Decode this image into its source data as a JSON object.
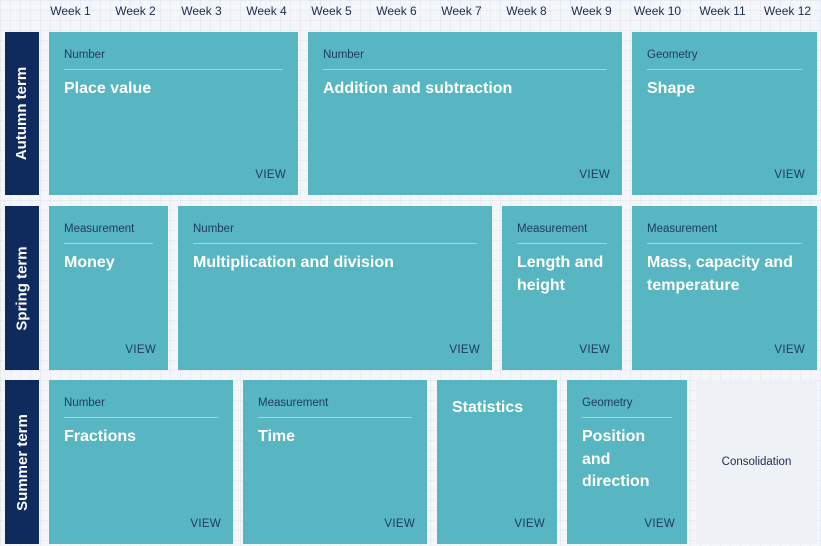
{
  "weeks": [
    "Week 1",
    "Week 2",
    "Week 3",
    "Week 4",
    "Week 5",
    "Week 6",
    "Week 7",
    "Week 8",
    "Week 9",
    "Week 10",
    "Week 11",
    "Week 12"
  ],
  "terms": [
    {
      "label": "Autumn term",
      "blocks": [
        {
          "category": "Number",
          "title": "Place value",
          "action": "VIEW"
        },
        {
          "category": "Number",
          "title": "Addition and subtraction",
          "action": "VIEW"
        },
        {
          "category": "Geometry",
          "title": "Shape",
          "action": "VIEW"
        }
      ]
    },
    {
      "label": "Spring term",
      "blocks": [
        {
          "category": "Measurement",
          "title": "Money",
          "action": "VIEW"
        },
        {
          "category": "Number",
          "title": "Multiplication and division",
          "action": "VIEW"
        },
        {
          "category": "Measurement",
          "title": "Length and height",
          "action": "VIEW"
        },
        {
          "category": "Measurement",
          "title": "Mass, capacity and temperature",
          "action": "VIEW"
        }
      ]
    },
    {
      "label": "Summer term",
      "blocks": [
        {
          "category": "Number",
          "title": "Fractions",
          "action": "VIEW"
        },
        {
          "category": "Measurement",
          "title": "Time",
          "action": "VIEW"
        },
        {
          "category": "",
          "title": "Statistics",
          "action": "VIEW"
        },
        {
          "category": "Geometry",
          "title": "Position and direction",
          "action": "VIEW"
        }
      ],
      "consolidation": "Consolidation"
    }
  ],
  "colors": {
    "term_bar": "#0f2a5c",
    "card": "#57b6c2",
    "consolidation": "#eef1f5"
  }
}
